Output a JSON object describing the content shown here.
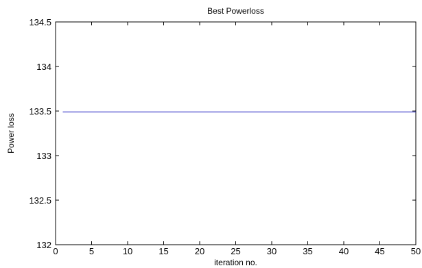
{
  "chart_data": {
    "type": "line",
    "title": "Best Powerloss",
    "xlabel": "iteration no.",
    "ylabel": "Power loss",
    "xlim": [
      0,
      50
    ],
    "ylim": [
      132,
      134.5
    ],
    "x_ticks": [
      0,
      5,
      10,
      15,
      20,
      25,
      30,
      35,
      40,
      45,
      50
    ],
    "y_ticks": [
      132,
      132.5,
      133,
      133.5,
      134,
      134.5
    ],
    "y_tick_labels": [
      "132",
      "132.5",
      "133",
      "133.5",
      "134",
      "134.5"
    ],
    "grid": false,
    "series": [
      {
        "color": "#2020c0",
        "x": [
          1,
          50
        ],
        "y": [
          133.49,
          133.49
        ]
      }
    ]
  }
}
